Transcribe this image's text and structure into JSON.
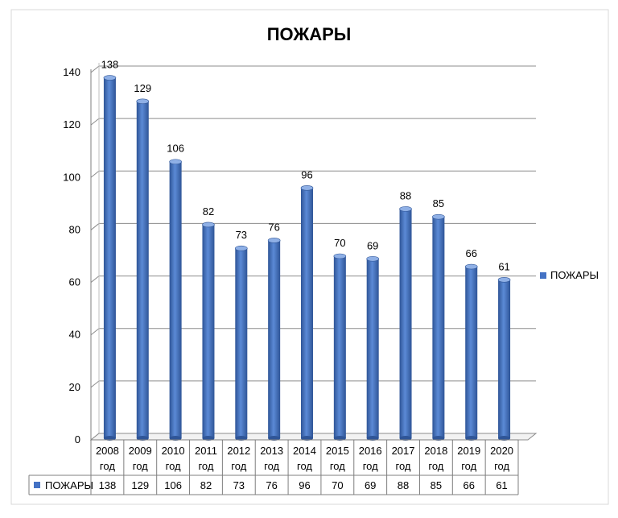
{
  "chart_data": {
    "type": "bar",
    "title": "ПОЖАРЫ",
    "categories": [
      "2008 год",
      "2009 год",
      "2010 год",
      "2011 год",
      "2012 год",
      "2013 год",
      "2014 год",
      "2015 год",
      "2016 год",
      "2017 год",
      "2018 год",
      "2019 год",
      "2020 год"
    ],
    "category_lines": [
      [
        "2008",
        "год"
      ],
      [
        "2009",
        "год"
      ],
      [
        "2010",
        "год"
      ],
      [
        "2011",
        "год"
      ],
      [
        "2012",
        "год"
      ],
      [
        "2013",
        "год"
      ],
      [
        "2014",
        "год"
      ],
      [
        "2015",
        "год"
      ],
      [
        "2016",
        "год"
      ],
      [
        "2017",
        "год"
      ],
      [
        "2018",
        "год"
      ],
      [
        "2019",
        "год"
      ],
      [
        "2020",
        "год"
      ]
    ],
    "series": [
      {
        "name": "ПОЖАРЫ",
        "values": [
          138,
          129,
          106,
          82,
          73,
          76,
          96,
          70,
          69,
          88,
          85,
          66,
          61
        ]
      }
    ],
    "ylim": [
      0,
      140
    ],
    "yticks": [
      0,
      20,
      40,
      60,
      80,
      100,
      120,
      140
    ],
    "data_labels": true,
    "data_table": true,
    "grid": true,
    "legend_position": "right",
    "bar_color": "#4472C4"
  }
}
